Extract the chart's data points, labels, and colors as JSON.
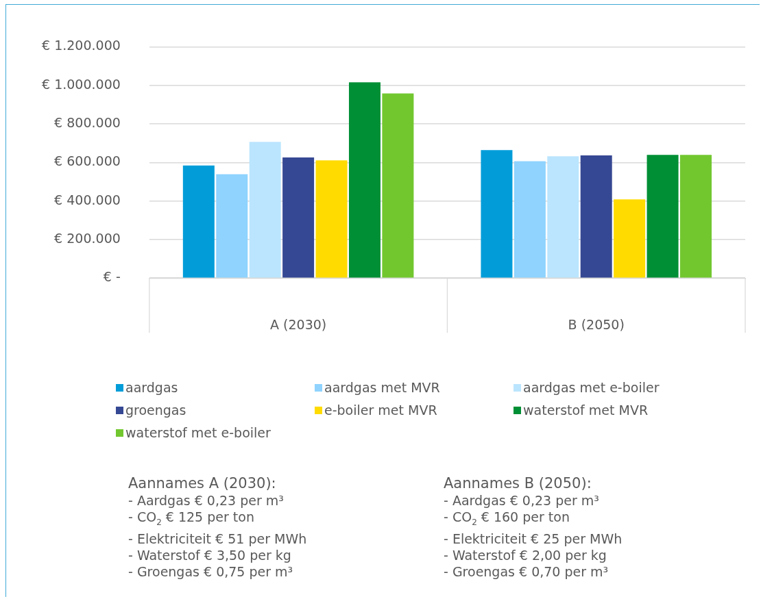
{
  "chart_data": {
    "type": "bar",
    "categories": [
      "A (2030)",
      "B (2050)"
    ],
    "series": [
      {
        "name": "aardgas",
        "color": "#029dd9",
        "values": [
          584000,
          664000
        ]
      },
      {
        "name": "aardgas met MVR",
        "color": "#8fd3fe",
        "values": [
          539000,
          606000
        ]
      },
      {
        "name": "aardgas met e-boiler",
        "color": "#bbe5fe",
        "values": [
          707000,
          632000
        ]
      },
      {
        "name": "groengas",
        "color": "#354893",
        "values": [
          626000,
          637000
        ]
      },
      {
        "name": "e-boiler met MVR",
        "color": "#ffdb00",
        "values": [
          611000,
          408000
        ]
      },
      {
        "name": "waterstof met MVR",
        "color": "#008f35",
        "values": [
          1016000,
          639000
        ]
      },
      {
        "name": "waterstof met e-boiler",
        "color": "#72c72f",
        "values": [
          958000,
          639000
        ]
      }
    ],
    "ylim": [
      0,
      1200000
    ],
    "yticks": [
      {
        "value": 0,
        "label": "€ -"
      },
      {
        "value": 200000,
        "label": "€ 200.000"
      },
      {
        "value": 400000,
        "label": "€ 400.000"
      },
      {
        "value": 600000,
        "label": "€ 600.000"
      },
      {
        "value": 800000,
        "label": "€ 800.000"
      },
      {
        "value": 1000000,
        "label": "€ 1.000.000"
      },
      {
        "value": 1200000,
        "label": "€ 1.200.000"
      }
    ],
    "grid": "y",
    "legend": "bottom",
    "annotations": [
      "Aannames A (2030):",
      "- Aardgas € 0,23 per m³",
      "- CO$_{2}$ € 125 per ton",
      "- Elektriciteit € 51 per MWh",
      "- Waterstof € 3,50 per kg",
      "- Groengas € 0,75 per m³",
      "Aannames B (2050):",
      "- Aardgas € 0,23 per m³",
      "- CO$_{2}$ € 160 per ton",
      "- Elektriciteit € 25 per MWh",
      "- Waterstof € 2,00 per kg",
      "- Groengas € 0,70 per m³"
    ]
  }
}
